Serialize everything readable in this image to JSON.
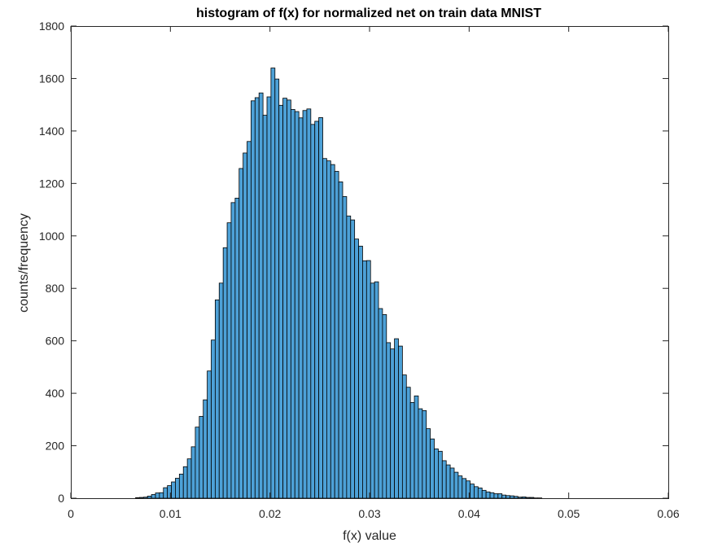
{
  "chart_data": {
    "type": "bar",
    "title": "histogram of f(x) for normalized net on train data MNIST",
    "xlabel": "f(x) value",
    "ylabel": "counts/frequency",
    "xlim": [
      0,
      0.06
    ],
    "ylim": [
      0,
      1800
    ],
    "xticks": [
      0,
      0.01,
      0.02,
      0.03,
      0.04,
      0.05,
      0.06
    ],
    "xtick_labels": [
      "0",
      "0.01",
      "0.02",
      "0.03",
      "0.04",
      "0.05",
      "0.06"
    ],
    "yticks": [
      0,
      200,
      400,
      600,
      800,
      1000,
      1200,
      1400,
      1600,
      1800
    ],
    "ytick_labels": [
      "0",
      "200",
      "400",
      "600",
      "800",
      "1000",
      "1200",
      "1400",
      "1600",
      "1800"
    ],
    "grid": false,
    "bin_start": 0.0065,
    "bin_width": 0.0004,
    "values": [
      2,
      3,
      4,
      8,
      14,
      20,
      21,
      40,
      48,
      62,
      76,
      92,
      120,
      150,
      196,
      271,
      312,
      375,
      485,
      603,
      756,
      820,
      955,
      1050,
      1127,
      1144,
      1257,
      1316,
      1360,
      1515,
      1527,
      1545,
      1460,
      1530,
      1640,
      1598,
      1498,
      1525,
      1518,
      1482,
      1474,
      1450,
      1478,
      1484,
      1425,
      1437,
      1451,
      1295,
      1286,
      1272,
      1246,
      1206,
      1150,
      1076,
      1061,
      988,
      961,
      905,
      906,
      820,
      825,
      723,
      700,
      593,
      569,
      608,
      580,
      470,
      423,
      365,
      390,
      341,
      334,
      265,
      226,
      188,
      179,
      143,
      127,
      115,
      99,
      85,
      75,
      66,
      54,
      44,
      39,
      30,
      24,
      21,
      17,
      17,
      12,
      10,
      9,
      7,
      4,
      5,
      3,
      3,
      1,
      1
    ]
  },
  "colors": {
    "bar_fill": "#4da1d7",
    "bar_edge": "#000000",
    "axis": "#262626",
    "background": "#ffffff"
  }
}
